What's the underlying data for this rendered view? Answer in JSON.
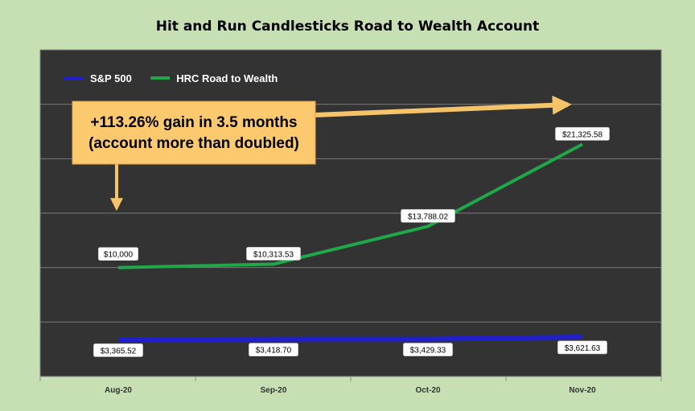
{
  "chart_data": {
    "type": "line",
    "title": "Hit and Run Candlesticks Road to Wealth Account",
    "categories": [
      "Aug-20",
      "Sep-20",
      "Oct-20",
      "Nov-20"
    ],
    "series": [
      {
        "name": "S&P 500",
        "values": [
          3365.52,
          3418.7,
          3429.33,
          3621.63
        ],
        "labels": [
          "$3,365.52",
          "$3,418.70",
          "$3,429.33",
          "$3,621.63"
        ],
        "color": "#1f1fcc"
      },
      {
        "name": "HRC Road to Wealth",
        "values": [
          10000,
          10313.53,
          13788.02,
          21325.58
        ],
        "labels": [
          "$10,000",
          "$10,313.53",
          "$13,788.02",
          "$21,325.58"
        ],
        "color": "#1fa84a"
      }
    ],
    "ylim": [
      0,
      30000
    ],
    "y_tick_step": 5000,
    "grid": true,
    "legend": "top-left",
    "plot_background": "#333333",
    "annotation": {
      "lines": [
        "+113.26% gain in 3.5 months",
        "(account more than doubled)"
      ],
      "fill": "#fcc96e",
      "arrow_color": "#f5c469"
    }
  }
}
